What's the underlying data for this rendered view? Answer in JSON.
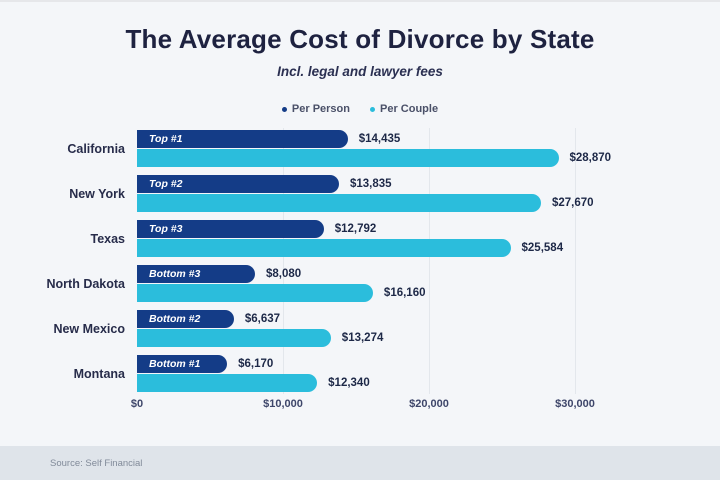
{
  "header": {
    "title": "The Average Cost of Divorce by State",
    "subtitle": "Incl. legal and lawyer fees"
  },
  "legend": {
    "items": [
      {
        "label": "Per Person",
        "color": "#143c87"
      },
      {
        "label": "Per Couple",
        "color": "#2bbddc"
      }
    ]
  },
  "chart_data": {
    "type": "bar",
    "orientation": "horizontal",
    "title": "The Average Cost of Divorce by State",
    "subtitle": "Incl. legal and lawyer fees",
    "categories": [
      "California",
      "New York",
      "Texas",
      "North Dakota",
      "New Mexico",
      "Montana"
    ],
    "badges": [
      "Top #1",
      "Top #2",
      "Top #3",
      "Bottom #3",
      "Bottom #2",
      "Bottom #1"
    ],
    "series": [
      {
        "name": "Per Person",
        "color": "#143c87",
        "values": [
          14435,
          13835,
          12792,
          8080,
          6637,
          6170
        ],
        "labels": [
          "$14,435",
          "$13,835",
          "$12,792",
          "$8,080",
          "$6,637",
          "$6,170"
        ]
      },
      {
        "name": "Per Couple",
        "color": "#2bbddc",
        "values": [
          28870,
          27670,
          25584,
          16160,
          13274,
          12340
        ],
        "labels": [
          "$28,870",
          "$27,670",
          "$25,584",
          "$16,160",
          "$13,274",
          "$12,340"
        ]
      }
    ],
    "xlabel": "",
    "ylabel": "",
    "xlim": [
      0,
      36000
    ],
    "x_ticks": [
      {
        "value": 0,
        "label": "$0"
      },
      {
        "value": 10000,
        "label": "$10,000"
      },
      {
        "value": 20000,
        "label": "$20,000"
      },
      {
        "value": 30000,
        "label": "$30,000"
      }
    ],
    "grid": true,
    "legend_position": "top"
  },
  "footer": {
    "source": "Source: Self Financial"
  },
  "colors": {
    "per_person": "#143c87",
    "per_couple": "#2bbddc",
    "title": "#1e2240",
    "background": "#f4f6f9",
    "footer_bg": "#dfe4ea",
    "grid": "#e3e7ec"
  }
}
